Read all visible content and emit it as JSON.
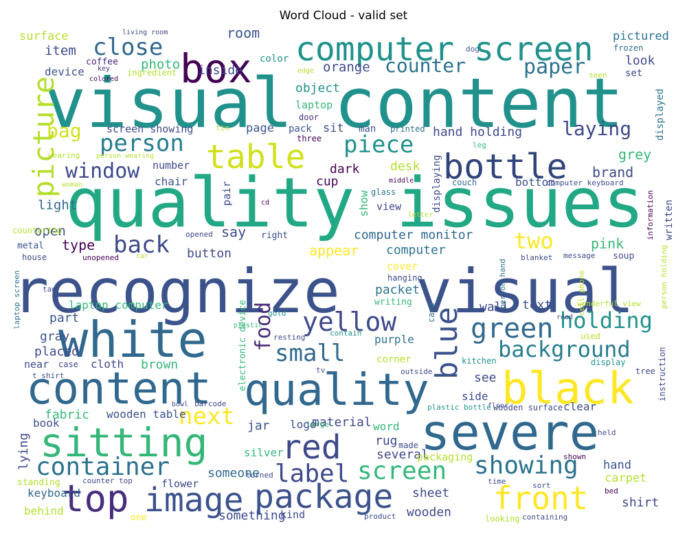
{
  "title": "Word Cloud - valid set",
  "words": [
    {
      "text": "visual content",
      "color": "#21918c"
    },
    {
      "text": "quality issues",
      "color": "#22a884"
    },
    {
      "text": "recognize",
      "color": "#3b528b"
    },
    {
      "text": "visual",
      "color": "#3b528b"
    },
    {
      "text": "severe",
      "color": "#31688e"
    },
    {
      "text": "white",
      "color": "#31688e"
    },
    {
      "text": "content",
      "color": "#31688e"
    },
    {
      "text": "quality",
      "color": "#31688e"
    },
    {
      "text": "black",
      "color": "#fde725"
    },
    {
      "text": "sitting",
      "color": "#35b779"
    },
    {
      "text": "box",
      "color": "#440154"
    },
    {
      "text": "computer screen",
      "color": "#21918c"
    },
    {
      "text": "table",
      "color": "#d0e11c"
    },
    {
      "text": "bottle",
      "color": "#30437a"
    },
    {
      "text": "picture",
      "color": "#b5de2b"
    },
    {
      "text": "top",
      "color": "#472d7b"
    },
    {
      "text": "image",
      "color": "#3b528b"
    },
    {
      "text": "package",
      "color": "#3b528b"
    },
    {
      "text": "front",
      "color": "#fde725"
    },
    {
      "text": "blue",
      "color": "#3b528b"
    },
    {
      "text": "red",
      "color": "#3e4989"
    },
    {
      "text": "yellow",
      "color": "#3e4989"
    },
    {
      "text": "green",
      "color": "#31688e"
    },
    {
      "text": "holding",
      "color": "#21918c"
    },
    {
      "text": "background",
      "color": "#287d8e"
    },
    {
      "text": "food",
      "color": "#482878"
    },
    {
      "text": "container",
      "color": "#2c728e"
    },
    {
      "text": "screen",
      "color": "#35b779"
    },
    {
      "text": "showing",
      "color": "#2c728e"
    },
    {
      "text": "label",
      "color": "#3e4989"
    },
    {
      "text": "next",
      "color": "#fde725"
    },
    {
      "text": "small",
      "color": "#31688e"
    },
    {
      "text": "back",
      "color": "#3e4989"
    },
    {
      "text": "close",
      "color": "#31688e"
    },
    {
      "text": "paper",
      "color": "#2c728e"
    },
    {
      "text": "counter",
      "color": "#2c728e"
    },
    {
      "text": "person",
      "color": "#287d8e"
    },
    {
      "text": "bag",
      "color": "#d0e11c"
    },
    {
      "text": "window",
      "color": "#3e4989"
    },
    {
      "text": "piece",
      "color": "#21918c"
    },
    {
      "text": "laying",
      "color": "#3e4989"
    },
    {
      "text": "two",
      "color": "#fde725"
    },
    {
      "text": "surface",
      "color": "#b5de2b"
    },
    {
      "text": "living room",
      "color": "#3e4989"
    },
    {
      "text": "room",
      "color": "#3b528b"
    },
    {
      "text": "pictured",
      "color": "#2c728e"
    },
    {
      "text": "dog",
      "color": "#3b528b"
    },
    {
      "text": "frozen",
      "color": "#31688e"
    },
    {
      "text": "look",
      "color": "#3e4989"
    },
    {
      "text": "color",
      "color": "#21918c"
    },
    {
      "text": "item",
      "color": "#3e4989"
    },
    {
      "text": "photo",
      "color": "#35b779"
    },
    {
      "text": "orange",
      "color": "#3e4989"
    },
    {
      "text": "coffee",
      "color": "#482878"
    },
    {
      "text": "key",
      "color": "#472d7b"
    },
    {
      "text": "device",
      "color": "#3b528b"
    },
    {
      "text": "inside",
      "color": "#3e4989"
    },
    {
      "text": "ingredient",
      "color": "#b5de2b"
    },
    {
      "text": "edge",
      "color": "#b5de2b"
    },
    {
      "text": "seen",
      "color": "#b5de2b"
    },
    {
      "text": "set",
      "color": "#3e4989"
    },
    {
      "text": "colored",
      "color": "#440154"
    },
    {
      "text": "object",
      "color": "#21918c"
    },
    {
      "text": "laptop",
      "color": "#35b779"
    },
    {
      "text": "door",
      "color": "#472d7b"
    },
    {
      "text": "displayed",
      "color": "#2c728e"
    },
    {
      "text": "screen showing",
      "color": "#3e4989"
    },
    {
      "text": "tin",
      "color": "#b5de2b"
    },
    {
      "text": "page",
      "color": "#3b528b"
    },
    {
      "text": "pack",
      "color": "#3b528b"
    },
    {
      "text": "sit",
      "color": "#3e4989"
    },
    {
      "text": "man",
      "color": "#3b528b"
    },
    {
      "text": "printed",
      "color": "#2c728e"
    },
    {
      "text": "hand holding",
      "color": "#3e4989"
    },
    {
      "text": "three",
      "color": "#440154"
    },
    {
      "text": "wearing",
      "color": "#b5de2b"
    },
    {
      "text": "person wearing",
      "color": "#b5de2b"
    },
    {
      "text": "leg",
      "color": "#35b779"
    },
    {
      "text": "grey",
      "color": "#35b779"
    },
    {
      "text": "brand",
      "color": "#3e4989"
    },
    {
      "text": "displaying",
      "color": "#3e4989"
    },
    {
      "text": "dark",
      "color": "#440154"
    },
    {
      "text": "desk",
      "color": "#b5de2b"
    },
    {
      "text": "cup",
      "color": "#440154"
    },
    {
      "text": "number",
      "color": "#3e4989"
    },
    {
      "text": "chair",
      "color": "#3b528b"
    },
    {
      "text": "woman",
      "color": "#b5de2b"
    },
    {
      "text": "pair",
      "color": "#3e4989"
    },
    {
      "text": "middle",
      "color": "#440154"
    },
    {
      "text": "glass",
      "color": "#2c728e"
    },
    {
      "text": "couch",
      "color": "#31688e"
    },
    {
      "text": "bottom",
      "color": "#3b528b"
    },
    {
      "text": "computer keyboard",
      "color": "#3e4989"
    },
    {
      "text": "written",
      "color": "#3e4989"
    },
    {
      "text": "light",
      "color": "#31688e"
    },
    {
      "text": "show",
      "color": "#35b779"
    },
    {
      "text": "view",
      "color": "#3e4989"
    },
    {
      "text": "cd",
      "color": "#440154"
    },
    {
      "text": "letter",
      "color": "#b5de2b"
    },
    {
      "text": "information",
      "color": "#440154"
    },
    {
      "text": "open",
      "color": "#3b528b"
    },
    {
      "text": "countertop",
      "color": "#b5de2b"
    },
    {
      "text": "say",
      "color": "#3e4989"
    },
    {
      "text": "opened",
      "color": "#3e4989"
    },
    {
      "text": "right",
      "color": "#3e4989"
    },
    {
      "text": "computer monitor",
      "color": "#31688e"
    },
    {
      "text": "type",
      "color": "#440154"
    },
    {
      "text": "computer",
      "color": "#2c728e"
    },
    {
      "text": "pink",
      "color": "#35b779"
    },
    {
      "text": "metal",
      "color": "#3b528b"
    },
    {
      "text": "cell phone",
      "color": "#b5de2b"
    },
    {
      "text": "person holding",
      "color": "#b5de2b"
    },
    {
      "text": "appear",
      "color": "#fde725"
    },
    {
      "text": "button",
      "color": "#3e4989"
    },
    {
      "text": "house",
      "color": "#3e4989"
    },
    {
      "text": "unopened",
      "color": "#440154"
    },
    {
      "text": "car",
      "color": "#b5de2b"
    },
    {
      "text": "blanket",
      "color": "#3e4989"
    },
    {
      "text": "message",
      "color": "#3e4989"
    },
    {
      "text": "soup",
      "color": "#3e4989"
    },
    {
      "text": "person hand",
      "color": "#2c728e"
    },
    {
      "text": "cover",
      "color": "#fde725"
    },
    {
      "text": "hanging",
      "color": "#3e4989"
    },
    {
      "text": "laptop screen",
      "color": "#2c728e"
    },
    {
      "text": "packet",
      "color": "#2c728e"
    },
    {
      "text": "electronic device",
      "color": "#35b779"
    },
    {
      "text": "tan",
      "color": "#3e4989"
    },
    {
      "text": "laptop computer",
      "color": "#35b779"
    },
    {
      "text": "writing",
      "color": "#35b779"
    },
    {
      "text": "wall",
      "color": "#3e4989"
    },
    {
      "text": "text",
      "color": "#3b528b"
    },
    {
      "text": "wonderful view",
      "color": "#b5de2b"
    },
    {
      "text": "part",
      "color": "#3b528b"
    },
    {
      "text": "gold",
      "color": "#21918c"
    },
    {
      "text": "plastic",
      "color": "#35b779"
    },
    {
      "text": "card",
      "color": "#2c728e"
    },
    {
      "text": "read",
      "color": "#3e4989"
    },
    {
      "text": "gray",
      "color": "#3b528b"
    },
    {
      "text": "placed",
      "color": "#3e4989"
    },
    {
      "text": "resting",
      "color": "#3e4989"
    },
    {
      "text": "contain",
      "color": "#21918c"
    },
    {
      "text": "purple",
      "color": "#2c728e"
    },
    {
      "text": "used",
      "color": "#b5de2b"
    },
    {
      "text": "brown",
      "color": "#35b779"
    },
    {
      "text": "cloth",
      "color": "#3e4989"
    },
    {
      "text": "near",
      "color": "#3e4989"
    },
    {
      "text": "case",
      "color": "#3e4989"
    },
    {
      "text": "t shirt",
      "color": "#3e4989"
    },
    {
      "text": "tv",
      "color": "#3b528b"
    },
    {
      "text": "corner",
      "color": "#b5de2b"
    },
    {
      "text": "outside",
      "color": "#3e4989"
    },
    {
      "text": "kitchen",
      "color": "#21918c"
    },
    {
      "text": "display",
      "color": "#21918c"
    },
    {
      "text": "tree",
      "color": "#3e4989"
    },
    {
      "text": "instruction",
      "color": "#3e4989"
    },
    {
      "text": "see",
      "color": "#3e4989"
    },
    {
      "text": "side",
      "color": "#3e4989"
    },
    {
      "text": "barcode",
      "color": "#3e4989"
    },
    {
      "text": "bowl",
      "color": "#3e4989"
    },
    {
      "text": "floor",
      "color": "#3e4989"
    },
    {
      "text": "fabric",
      "color": "#35b779"
    },
    {
      "text": "wooden table",
      "color": "#3b528b"
    },
    {
      "text": "material",
      "color": "#3e4989"
    },
    {
      "text": "plastic bottle",
      "color": "#21918c"
    },
    {
      "text": "wooden surface",
      "color": "#3e4989"
    },
    {
      "text": "clear",
      "color": "#3e4989"
    },
    {
      "text": "book",
      "color": "#3b528b"
    },
    {
      "text": "jar",
      "color": "#3b528b"
    },
    {
      "text": "logo",
      "color": "#3e4989"
    },
    {
      "text": "large",
      "color": "#35b779"
    },
    {
      "text": "lying",
      "color": "#3e4989"
    },
    {
      "text": "word",
      "color": "#35b779"
    },
    {
      "text": "rug",
      "color": "#3e4989"
    },
    {
      "text": "made",
      "color": "#3e4989"
    },
    {
      "text": "held",
      "color": "#3e4989"
    },
    {
      "text": "silver",
      "color": "#35b779"
    },
    {
      "text": "several",
      "color": "#3e4989"
    },
    {
      "text": "packaging",
      "color": "#b5de2b"
    },
    {
      "text": "turned",
      "color": "#3e4989"
    },
    {
      "text": "shown",
      "color": "#440154"
    },
    {
      "text": "hand",
      "color": "#3b528b"
    },
    {
      "text": "someone",
      "color": "#31688e"
    },
    {
      "text": "carpet",
      "color": "#b5de2b"
    },
    {
      "text": "standing",
      "color": "#b5de2b"
    },
    {
      "text": "counter top",
      "color": "#3e4989"
    },
    {
      "text": "flower",
      "color": "#3e4989"
    },
    {
      "text": "time",
      "color": "#3e4989"
    },
    {
      "text": "sort",
      "color": "#3b528b"
    },
    {
      "text": "keyboard",
      "color": "#31688e"
    },
    {
      "text": "sheet",
      "color": "#3e4989"
    },
    {
      "text": "bed",
      "color": "#440154"
    },
    {
      "text": "shirt",
      "color": "#3e4989"
    },
    {
      "text": "behind",
      "color": "#b5de2b"
    },
    {
      "text": "one",
      "color": "#fde725"
    },
    {
      "text": "something",
      "color": "#3e4989"
    },
    {
      "text": "kind",
      "color": "#3e4989"
    },
    {
      "text": "product",
      "color": "#3e4989"
    },
    {
      "text": "wooden",
      "color": "#3e4989"
    },
    {
      "text": "looking",
      "color": "#b5de2b"
    },
    {
      "text": "containing",
      "color": "#3e4989"
    }
  ]
}
